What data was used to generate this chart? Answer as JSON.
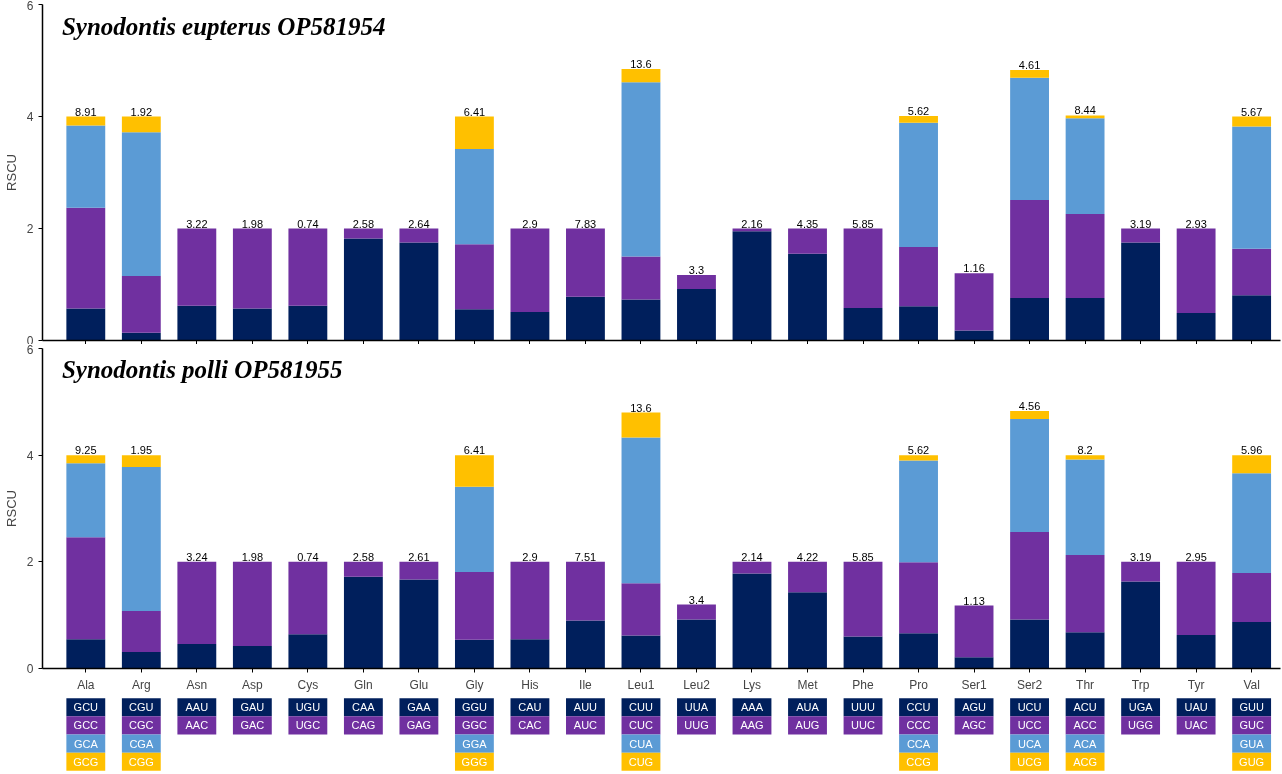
{
  "chart_data": [
    {
      "type": "bar",
      "title": "Synodontis eupterus OP581954",
      "ylabel": "RSCU",
      "stacked": true,
      "categories": [
        "Ala",
        "Arg",
        "Asn",
        "Asp",
        "Cys",
        "Gln",
        "Glu",
        "Gly",
        "His",
        "Ile",
        "Leu1",
        "Leu2",
        "Lys",
        "Met",
        "Phe",
        "Pro",
        "Ser1",
        "Ser2",
        "Thr",
        "Trp",
        "Tyr",
        "Val"
      ],
      "series": [
        {
          "color": "#001f5c",
          "values": [
            0.57,
            0.14,
            0.62,
            0.57,
            0.62,
            1.82,
            1.75,
            0.56,
            0.51,
            0.78,
            0.73,
            0.92,
            1.95,
            1.55,
            0.58,
            0.61,
            0.18,
            0.76,
            0.76,
            1.75,
            0.49,
            0.81
          ]
        },
        {
          "color": "#7030a0",
          "values": [
            1.8,
            1.01,
            1.38,
            1.43,
            1.38,
            0.18,
            0.25,
            1.16,
            1.49,
            1.22,
            0.77,
            0.25,
            0.05,
            0.45,
            1.42,
            1.06,
            1.02,
            1.75,
            1.5,
            0.25,
            1.51,
            0.83
          ]
        },
        {
          "color": "#5b9bd5",
          "values": [
            1.47,
            2.57,
            null,
            null,
            null,
            null,
            null,
            1.7,
            null,
            null,
            3.11,
            null,
            null,
            null,
            null,
            2.22,
            null,
            2.18,
            1.71,
            null,
            null,
            2.18
          ]
        },
        {
          "color": "#ffc000",
          "values": [
            0.16,
            0.28,
            null,
            null,
            null,
            null,
            null,
            0.58,
            null,
            null,
            0.24,
            null,
            null,
            null,
            null,
            0.12,
            null,
            0.14,
            0.05,
            null,
            null,
            0.18
          ]
        }
      ],
      "annotations": [
        {
          "text": "8.91",
          "x": "Ala",
          "y": 4.0
        },
        {
          "text": "1.92",
          "x": "Arg",
          "y": 4.0
        },
        {
          "text": "3.22",
          "x": "Asn",
          "y": 2.0
        },
        {
          "text": "1.98",
          "x": "Asp",
          "y": 2.0
        },
        {
          "text": "0.74",
          "x": "Cys",
          "y": 2.0
        },
        {
          "text": "2.58",
          "x": "Gln",
          "y": 2.0
        },
        {
          "text": "2.64",
          "x": "Glu",
          "y": 2.0
        },
        {
          "text": "6.41",
          "x": "Gly",
          "y": 4.0
        },
        {
          "text": "2.9",
          "x": "His",
          "y": 2.0
        },
        {
          "text": "7.83",
          "x": "Ile",
          "y": 2.0
        },
        {
          "text": "13.6",
          "x": "Leu1",
          "y": 4.85
        },
        {
          "text": "3.3",
          "x": "Leu2",
          "y": 1.17
        },
        {
          "text": "2.16",
          "x": "Lys",
          "y": 2.0
        },
        {
          "text": "4.35",
          "x": "Met",
          "y": 2.0
        },
        {
          "text": "5.85",
          "x": "Phe",
          "y": 2.0
        },
        {
          "text": "5.62",
          "x": "Pro",
          "y": 4.01
        },
        {
          "text": "1.16",
          "x": "Ser1",
          "y": 1.2
        },
        {
          "text": "4.61",
          "x": "Ser2",
          "y": 4.83
        },
        {
          "text": "8.44",
          "x": "Thr",
          "y": 4.02
        },
        {
          "text": "3.19",
          "x": "Trp",
          "y": 2.0
        },
        {
          "text": "2.93",
          "x": "Tyr",
          "y": 2.0
        },
        {
          "text": "5.67",
          "x": "Val",
          "y": 4.0
        }
      ],
      "ylim": [
        0,
        6
      ],
      "yticks": [
        0,
        2,
        4,
        6
      ],
      "grid": false,
      "tick_labels": "y"
    },
    {
      "type": "bar",
      "title": "Synodontis polli OP581955",
      "ylabel": "RSCU",
      "stacked": true,
      "categories": [
        "Ala",
        "Arg",
        "Asn",
        "Asp",
        "Cys",
        "Gln",
        "Glu",
        "Gly",
        "His",
        "Ile",
        "Leu1",
        "Leu2",
        "Lys",
        "Met",
        "Phe",
        "Pro",
        "Ser1",
        "Ser2",
        "Thr",
        "Trp",
        "Tyr",
        "Val"
      ],
      "series": [
        {
          "color": "#001f5c",
          "values": [
            0.55,
            0.31,
            0.46,
            0.42,
            0.64,
            1.72,
            1.67,
            0.54,
            0.55,
            0.9,
            0.62,
            0.92,
            1.78,
            1.43,
            0.6,
            0.66,
            0.21,
            0.92,
            0.68,
            1.63,
            0.63,
            0.87
          ]
        },
        {
          "color": "#7030a0",
          "values": [
            1.91,
            0.77,
            1.54,
            1.58,
            1.36,
            0.28,
            0.33,
            1.27,
            1.45,
            1.1,
            0.98,
            0.28,
            0.22,
            0.57,
            1.4,
            1.33,
            0.97,
            1.64,
            1.45,
            0.37,
            1.37,
            0.92
          ]
        },
        {
          "color": "#5b9bd5",
          "values": [
            1.39,
            2.7,
            null,
            null,
            null,
            null,
            null,
            1.6,
            null,
            null,
            2.73,
            null,
            null,
            null,
            null,
            1.91,
            null,
            2.12,
            1.79,
            null,
            null,
            1.87
          ]
        },
        {
          "color": "#ffc000",
          "values": [
            0.15,
            0.22,
            null,
            null,
            null,
            null,
            null,
            0.59,
            null,
            null,
            0.47,
            null,
            null,
            null,
            null,
            0.1,
            null,
            0.15,
            0.08,
            null,
            null,
            0.34
          ]
        }
      ],
      "annotations": [
        {
          "text": "9.25",
          "x": "Ala",
          "y": 4.0
        },
        {
          "text": "1.95",
          "x": "Arg",
          "y": 4.0
        },
        {
          "text": "3.24",
          "x": "Asn",
          "y": 2.0
        },
        {
          "text": "1.98",
          "x": "Asp",
          "y": 2.0
        },
        {
          "text": "0.74",
          "x": "Cys",
          "y": 2.0
        },
        {
          "text": "2.58",
          "x": "Gln",
          "y": 2.0
        },
        {
          "text": "2.61",
          "x": "Glu",
          "y": 2.0
        },
        {
          "text": "6.41",
          "x": "Gly",
          "y": 4.0
        },
        {
          "text": "2.9",
          "x": "His",
          "y": 2.0
        },
        {
          "text": "7.51",
          "x": "Ile",
          "y": 2.0
        },
        {
          "text": "13.6",
          "x": "Leu1",
          "y": 4.8
        },
        {
          "text": "3.4",
          "x": "Leu2",
          "y": 1.2
        },
        {
          "text": "2.14",
          "x": "Lys",
          "y": 2.0
        },
        {
          "text": "4.22",
          "x": "Met",
          "y": 2.0
        },
        {
          "text": "5.85",
          "x": "Phe",
          "y": 2.0
        },
        {
          "text": "5.62",
          "x": "Pro",
          "y": 4.0
        },
        {
          "text": "1.13",
          "x": "Ser1",
          "y": 1.18
        },
        {
          "text": "4.56",
          "x": "Ser2",
          "y": 4.83
        },
        {
          "text": "8.2",
          "x": "Thr",
          "y": 4.0
        },
        {
          "text": "3.19",
          "x": "Trp",
          "y": 2.0
        },
        {
          "text": "2.95",
          "x": "Tyr",
          "y": 2.0
        },
        {
          "text": "5.96",
          "x": "Val",
          "y": 4.01
        }
      ],
      "ylim": [
        0,
        6
      ],
      "yticks": [
        0,
        2,
        4,
        6
      ],
      "grid": false
    },
    {
      "type": "other",
      "colors": [
        "#001f5c",
        "#7030a0",
        "#5b9bd5",
        "#ffc000"
      ],
      "cell_labels": [
        [
          "GCU",
          "CGU",
          "AAU",
          "GAU",
          "UGU",
          "CAA",
          "GAA",
          "GGU",
          "CAU",
          "AUU",
          "CUU",
          "UUA",
          "AAA",
          "AUA",
          "UUU",
          "CCU",
          "AGU",
          "UCU",
          "ACU",
          "UGA",
          "UAU",
          "GUU"
        ],
        [
          "GCC",
          "CGC",
          "AAC",
          "GAC",
          "UGC",
          "CAG",
          "GAG",
          "GGC",
          "CAC",
          "AUC",
          "CUC",
          "UUG",
          "AAG",
          "AUG",
          "UUC",
          "CCC",
          "AGC",
          "UCC",
          "ACC",
          "UGG",
          "UAC",
          "GUC"
        ],
        [
          "GCA",
          "CGA",
          null,
          null,
          null,
          null,
          null,
          "GGA",
          null,
          null,
          "CUA",
          null,
          null,
          null,
          null,
          "CCA",
          null,
          "UCA",
          "ACA",
          null,
          null,
          "GUA"
        ],
        [
          "GCG",
          "CGG",
          null,
          null,
          null,
          null,
          null,
          "GGG",
          null,
          null,
          "CUG",
          null,
          null,
          null,
          null,
          "CCG",
          null,
          "UCG",
          "ACG",
          null,
          null,
          "GUG"
        ]
      ]
    }
  ]
}
